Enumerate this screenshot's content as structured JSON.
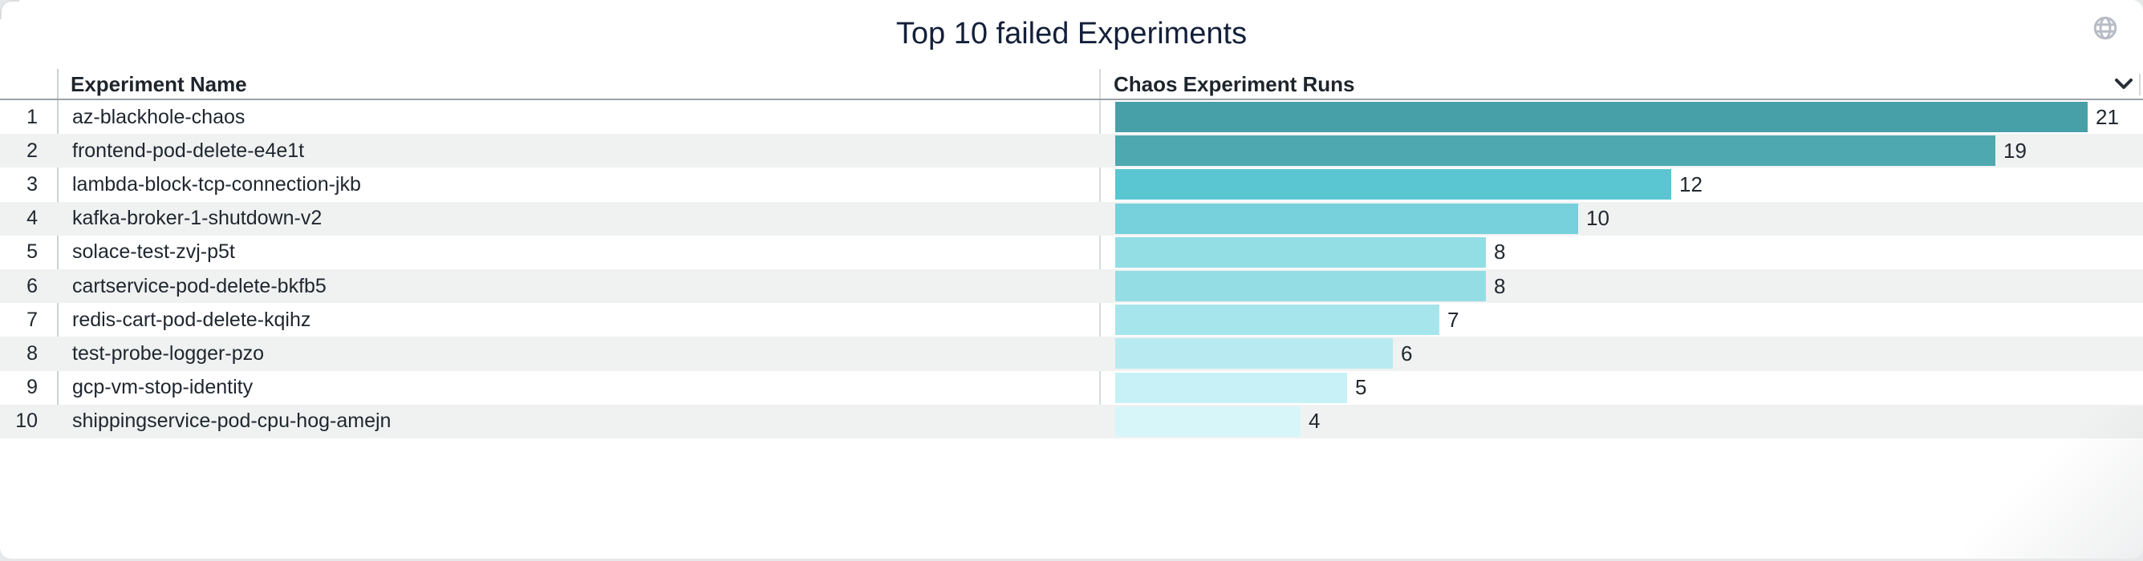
{
  "panel": {
    "title": "Top 10 failed Experiments"
  },
  "header": {
    "columns": [
      {
        "label": "Experiment Name"
      },
      {
        "label": "Chaos Experiment Runs"
      }
    ]
  },
  "icons": {
    "globe": "globe-icon",
    "column_collapse": "chevron-down-icon"
  },
  "colors": {
    "row_stripe": "#f0f1f1",
    "header_underline": "#9ba1a6",
    "title_text": "#14203a",
    "globe_gray": "#b7bcc6"
  },
  "table": {
    "rows": [
      {
        "rank": "1",
        "name": "az-blackhole-chaos",
        "runs": 21,
        "bar_color": "#479fa8"
      },
      {
        "rank": "2",
        "name": "frontend-pod-delete-e4e1t",
        "runs": 19,
        "bar_color": "#4ea8b0"
      },
      {
        "rank": "3",
        "name": "lambda-block-tcp-connection-jkb",
        "runs": 12,
        "bar_color": "#5ac6d2"
      },
      {
        "rank": "4",
        "name": "kafka-broker-1-shutdown-v2",
        "runs": 10,
        "bar_color": "#76d1dc"
      },
      {
        "rank": "5",
        "name": "solace-test-zvj-p5t",
        "runs": 8,
        "bar_color": "#93dde5"
      },
      {
        "rank": "6",
        "name": "cartservice-pod-delete-bkfb5",
        "runs": 8,
        "bar_color": "#95dde5"
      },
      {
        "rank": "7",
        "name": "redis-cart-pod-delete-kqihz",
        "runs": 7,
        "bar_color": "#a6e5ec"
      },
      {
        "rank": "8",
        "name": "test-probe-logger-pzo",
        "runs": 6,
        "bar_color": "#b7ebf1"
      },
      {
        "rank": "9",
        "name": "gcp-vm-stop-identity",
        "runs": 5,
        "bar_color": "#c7f1f6"
      },
      {
        "rank": "10",
        "name": "shippingservice-pod-cpu-hog-amejn",
        "runs": 4,
        "bar_color": "#d7f6fa"
      }
    ]
  },
  "chart_data": {
    "type": "bar",
    "orientation": "horizontal",
    "title": "Top 10 failed Experiments",
    "categories": [
      "az-blackhole-chaos",
      "frontend-pod-delete-e4e1t",
      "lambda-block-tcp-connection-jkb",
      "kafka-broker-1-shutdown-v2",
      "solace-test-zvj-p5t",
      "cartservice-pod-delete-bkfb5",
      "redis-cart-pod-delete-kqihz",
      "test-probe-logger-pzo",
      "gcp-vm-stop-identity",
      "shippingservice-pod-cpu-hog-amejn"
    ],
    "values": [
      21,
      19,
      12,
      10,
      8,
      8,
      7,
      6,
      5,
      4
    ],
    "xlabel": "Chaos Experiment Runs",
    "ylabel": "Experiment Name",
    "xlim": [
      0,
      21
    ],
    "grid": false,
    "legend": false,
    "value_labels": true,
    "color_scale": [
      "#479fa8",
      "#d7f6fa"
    ]
  }
}
